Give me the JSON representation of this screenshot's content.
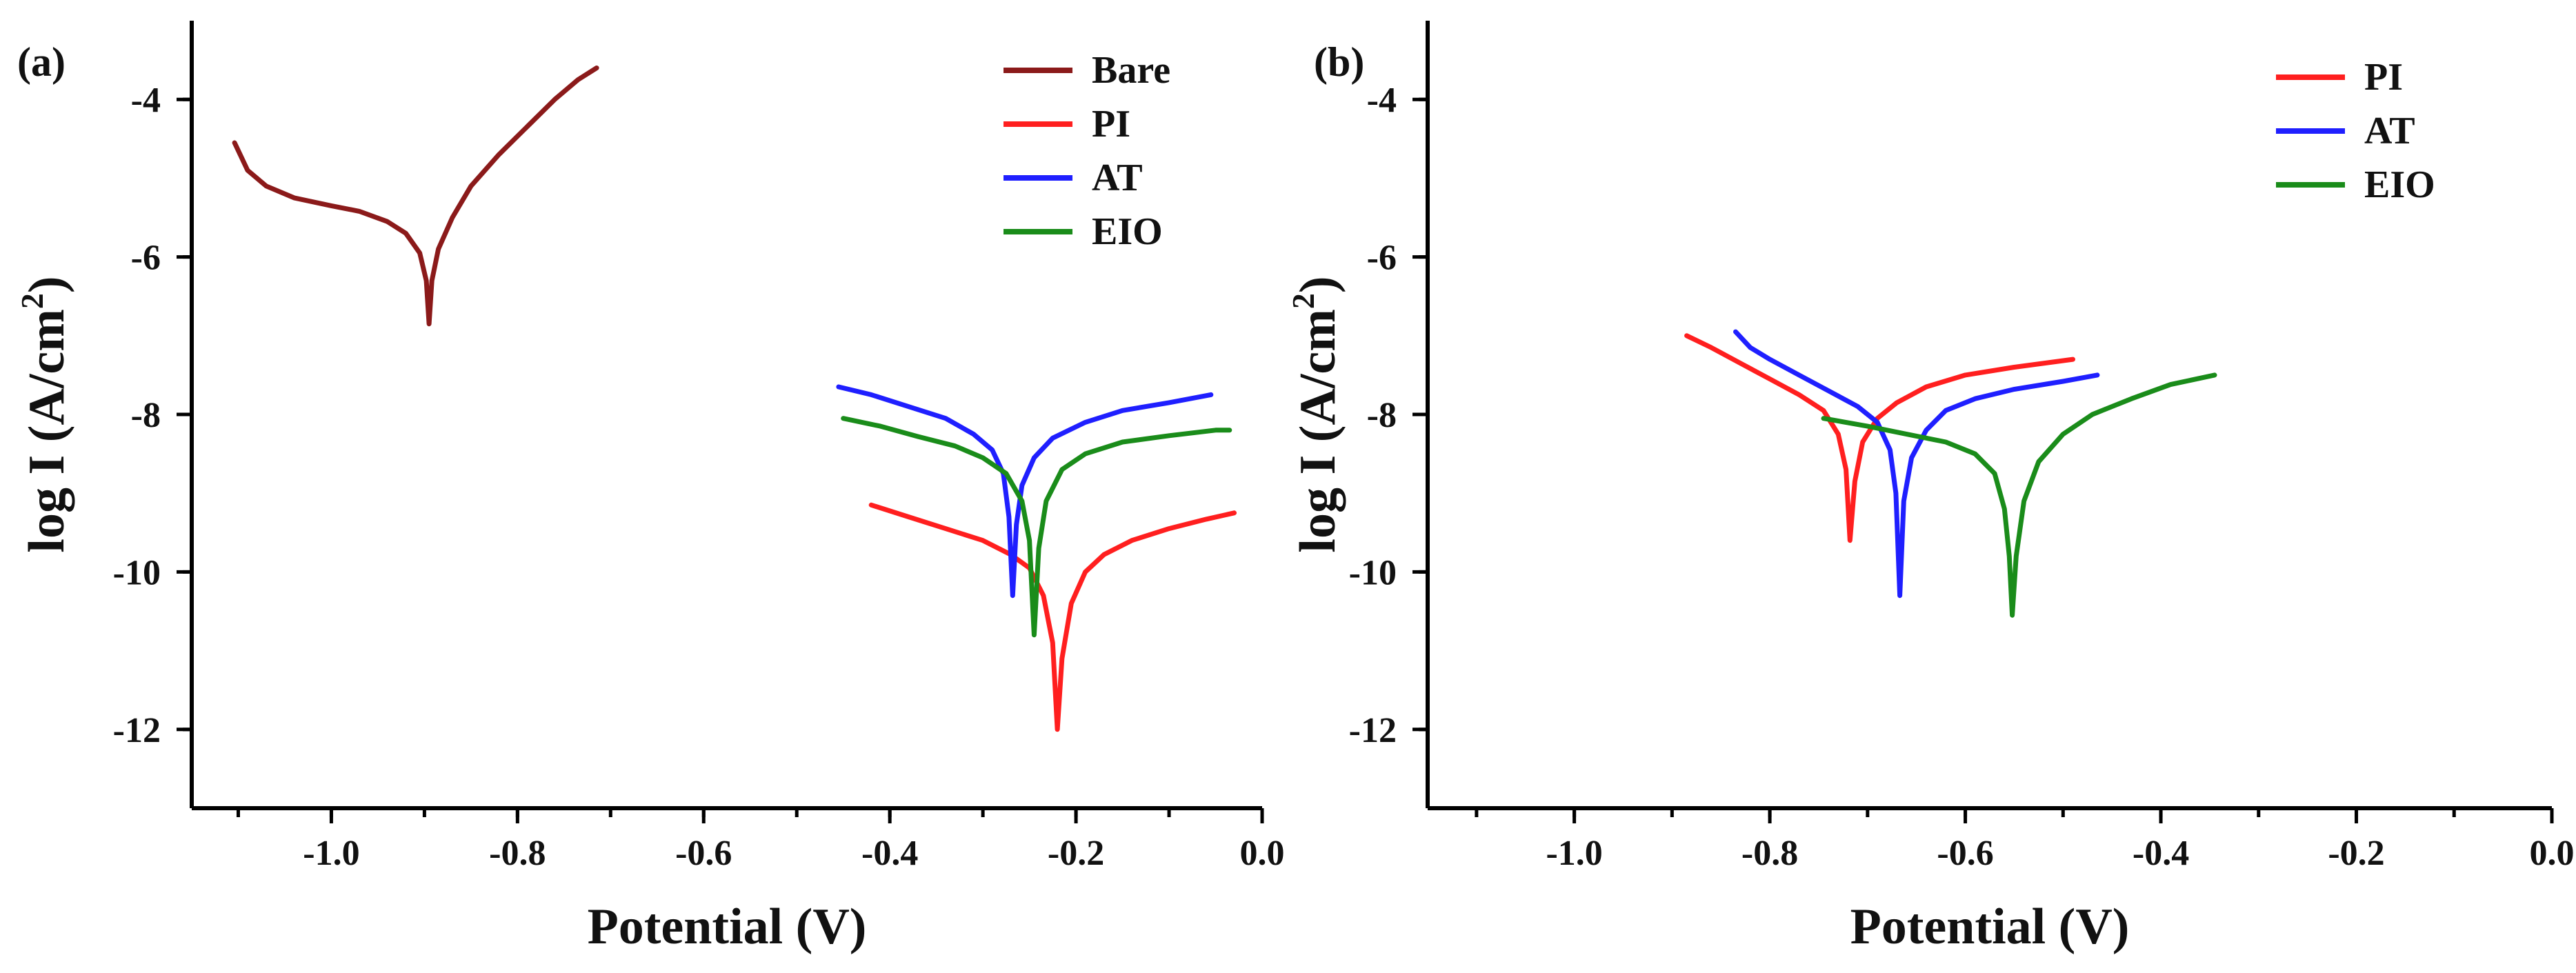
{
  "figure": {
    "panels": [
      "(a)",
      "(b)"
    ]
  },
  "chart_data": [
    {
      "type": "line",
      "panel_label": "(a)",
      "xlabel": "Potential (V)",
      "ylabel": "log I (A/cm",
      "ylabel_sup": "2",
      "ylabel_close": ")",
      "xlim": [
        -1.15,
        0.0
      ],
      "ylim": [
        -13,
        -3
      ],
      "xticks": [
        -1.0,
        -0.8,
        -0.6,
        -0.4,
        -0.2,
        0.0
      ],
      "xtick_labels": [
        "-1.0",
        "-0.8",
        "-0.6",
        "-0.4",
        "-0.2",
        "0.0"
      ],
      "yticks": [
        -4,
        -6,
        -8,
        -10,
        -12
      ],
      "ytick_labels": [
        "-4",
        "-6",
        "-8",
        "-10",
        "-12"
      ],
      "legend_position": "top-right",
      "series": [
        {
          "name": "Bare",
          "color": "#8B1A1A",
          "points": [
            [
              -1.104,
              -4.55
            ],
            [
              -1.09,
              -4.9
            ],
            [
              -1.07,
              -5.1
            ],
            [
              -1.04,
              -5.25
            ],
            [
              -1.0,
              -5.35
            ],
            [
              -0.97,
              -5.42
            ],
            [
              -0.94,
              -5.55
            ],
            [
              -0.92,
              -5.7
            ],
            [
              -0.905,
              -5.95
            ],
            [
              -0.898,
              -6.3
            ],
            [
              -0.895,
              -6.85
            ],
            [
              -0.892,
              -6.3
            ],
            [
              -0.885,
              -5.9
            ],
            [
              -0.87,
              -5.5
            ],
            [
              -0.85,
              -5.1
            ],
            [
              -0.82,
              -4.7
            ],
            [
              -0.79,
              -4.35
            ],
            [
              -0.76,
              -4.0
            ],
            [
              -0.735,
              -3.75
            ],
            [
              -0.715,
              -3.6
            ]
          ]
        },
        {
          "name": "PI",
          "color": "#FF1F1F",
          "points": [
            [
              -0.42,
              -9.15
            ],
            [
              -0.38,
              -9.3
            ],
            [
              -0.34,
              -9.45
            ],
            [
              -0.3,
              -9.6
            ],
            [
              -0.27,
              -9.78
            ],
            [
              -0.25,
              -9.95
            ],
            [
              -0.235,
              -10.3
            ],
            [
              -0.225,
              -10.9
            ],
            [
              -0.22,
              -12.0
            ],
            [
              -0.215,
              -11.1
            ],
            [
              -0.205,
              -10.4
            ],
            [
              -0.19,
              -10.0
            ],
            [
              -0.17,
              -9.78
            ],
            [
              -0.14,
              -9.6
            ],
            [
              -0.1,
              -9.45
            ],
            [
              -0.06,
              -9.33
            ],
            [
              -0.03,
              -9.25
            ]
          ]
        },
        {
          "name": "AT",
          "color": "#1F1FFF",
          "points": [
            [
              -0.455,
              -7.65
            ],
            [
              -0.42,
              -7.75
            ],
            [
              -0.38,
              -7.9
            ],
            [
              -0.34,
              -8.05
            ],
            [
              -0.31,
              -8.25
            ],
            [
              -0.29,
              -8.45
            ],
            [
              -0.278,
              -8.75
            ],
            [
              -0.272,
              -9.3
            ],
            [
              -0.268,
              -10.3
            ],
            [
              -0.264,
              -9.4
            ],
            [
              -0.258,
              -8.9
            ],
            [
              -0.245,
              -8.55
            ],
            [
              -0.225,
              -8.3
            ],
            [
              -0.19,
              -8.1
            ],
            [
              -0.15,
              -7.95
            ],
            [
              -0.1,
              -7.85
            ],
            [
              -0.055,
              -7.75
            ]
          ]
        },
        {
          "name": "EIO",
          "color": "#1A8C1A",
          "points": [
            [
              -0.45,
              -8.05
            ],
            [
              -0.41,
              -8.15
            ],
            [
              -0.37,
              -8.28
            ],
            [
              -0.33,
              -8.4
            ],
            [
              -0.3,
              -8.55
            ],
            [
              -0.275,
              -8.75
            ],
            [
              -0.258,
              -9.1
            ],
            [
              -0.25,
              -9.6
            ],
            [
              -0.245,
              -10.8
            ],
            [
              -0.24,
              -9.7
            ],
            [
              -0.232,
              -9.1
            ],
            [
              -0.215,
              -8.7
            ],
            [
              -0.19,
              -8.5
            ],
            [
              -0.15,
              -8.35
            ],
            [
              -0.1,
              -8.27
            ],
            [
              -0.05,
              -8.2
            ],
            [
              -0.035,
              -8.2
            ]
          ]
        }
      ]
    },
    {
      "type": "line",
      "panel_label": "(b)",
      "xlabel": "Potential (V)",
      "ylabel": "log I (A/cm",
      "ylabel_sup": "2",
      "ylabel_close": ")",
      "xlim": [
        -1.15,
        0.0
      ],
      "ylim": [
        -13,
        -3
      ],
      "xticks": [
        -1.0,
        -0.8,
        -0.6,
        -0.4,
        -0.2,
        0.0
      ],
      "xtick_labels": [
        "-1.0",
        "-0.8",
        "-0.6",
        "-0.4",
        "-0.2",
        "0.0"
      ],
      "yticks": [
        -4,
        -6,
        -8,
        -10,
        -12
      ],
      "ytick_labels": [
        "-4",
        "-6",
        "-8",
        "-10",
        "-12"
      ],
      "legend_position": "top-right",
      "series": [
        {
          "name": "PI",
          "color": "#FF1F1F",
          "points": [
            [
              -0.885,
              -7.0
            ],
            [
              -0.86,
              -7.15
            ],
            [
              -0.83,
              -7.35
            ],
            [
              -0.8,
              -7.55
            ],
            [
              -0.77,
              -7.75
            ],
            [
              -0.745,
              -7.95
            ],
            [
              -0.73,
              -8.25
            ],
            [
              -0.722,
              -8.7
            ],
            [
              -0.718,
              -9.6
            ],
            [
              -0.713,
              -8.85
            ],
            [
              -0.705,
              -8.35
            ],
            [
              -0.69,
              -8.05
            ],
            [
              -0.67,
              -7.85
            ],
            [
              -0.64,
              -7.65
            ],
            [
              -0.6,
              -7.5
            ],
            [
              -0.55,
              -7.4
            ],
            [
              -0.49,
              -7.3
            ]
          ]
        },
        {
          "name": "AT",
          "color": "#1F1FFF",
          "points": [
            [
              -0.835,
              -6.95
            ],
            [
              -0.82,
              -7.15
            ],
            [
              -0.8,
              -7.3
            ],
            [
              -0.77,
              -7.5
            ],
            [
              -0.74,
              -7.7
            ],
            [
              -0.71,
              -7.9
            ],
            [
              -0.69,
              -8.1
            ],
            [
              -0.677,
              -8.45
            ],
            [
              -0.671,
              -9.0
            ],
            [
              -0.667,
              -10.3
            ],
            [
              -0.663,
              -9.1
            ],
            [
              -0.655,
              -8.55
            ],
            [
              -0.64,
              -8.2
            ],
            [
              -0.62,
              -7.95
            ],
            [
              -0.59,
              -7.8
            ],
            [
              -0.55,
              -7.68
            ],
            [
              -0.5,
              -7.58
            ],
            [
              -0.465,
              -7.5
            ]
          ]
        },
        {
          "name": "EIO",
          "color": "#1A8C1A",
          "points": [
            [
              -0.745,
              -8.05
            ],
            [
              -0.7,
              -8.15
            ],
            [
              -0.66,
              -8.25
            ],
            [
              -0.62,
              -8.35
            ],
            [
              -0.59,
              -8.5
            ],
            [
              -0.57,
              -8.75
            ],
            [
              -0.56,
              -9.2
            ],
            [
              -0.555,
              -9.8
            ],
            [
              -0.552,
              -10.55
            ],
            [
              -0.548,
              -9.8
            ],
            [
              -0.54,
              -9.1
            ],
            [
              -0.525,
              -8.6
            ],
            [
              -0.5,
              -8.25
            ],
            [
              -0.47,
              -8.0
            ],
            [
              -0.43,
              -7.8
            ],
            [
              -0.39,
              -7.62
            ],
            [
              -0.345,
              -7.5
            ]
          ]
        }
      ]
    }
  ]
}
